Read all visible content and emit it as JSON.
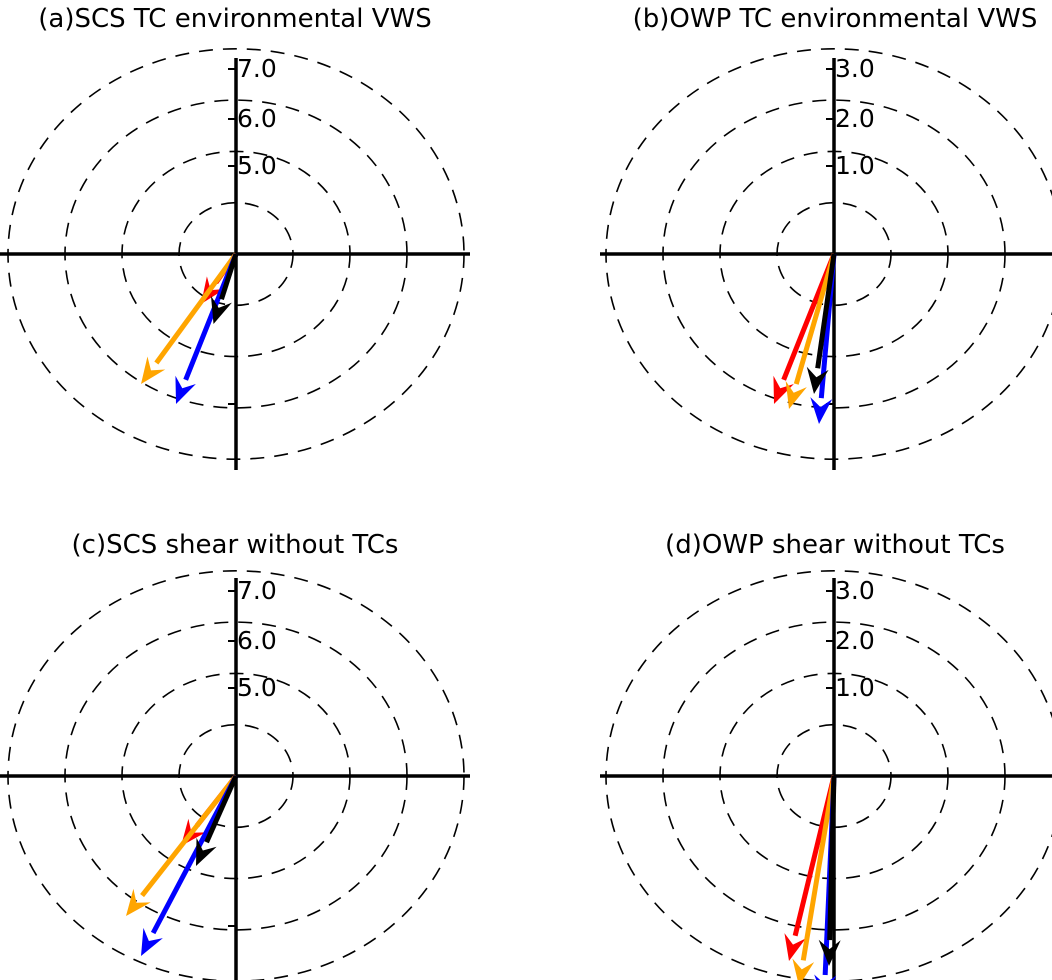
{
  "figure": {
    "vector_colors": {
      "red": "#ff0000",
      "orange": "#ffa500",
      "blue": "#0000ff",
      "black": "#000000"
    }
  },
  "chart_data": [
    {
      "type": "polar-vector",
      "title": "(a)SCS  TC environmental VWS",
      "radial_tick_labels": [
        "5.0",
        "6.0",
        "7.0"
      ],
      "vectors": [
        {
          "color": "#ff0000",
          "u": -0.7,
          "v": -1.0
        },
        {
          "color": "#ffa500",
          "u": -1.9,
          "v": -2.6
        },
        {
          "color": "#0000ff",
          "u": -1.2,
          "v": -3.0
        },
        {
          "color": "#000000",
          "u": -0.45,
          "v": -1.4
        }
      ]
    },
    {
      "type": "polar-vector",
      "title": "(b)OWP  TC environmental VWS",
      "radial_tick_labels": [
        "1.0",
        "2.0",
        "3.0"
      ],
      "vectors": [
        {
          "color": "#ff0000",
          "u": -1.2,
          "v": -3.0
        },
        {
          "color": "#ffa500",
          "u": -0.9,
          "v": -3.1
        },
        {
          "color": "#0000ff",
          "u": -0.3,
          "v": -3.4
        },
        {
          "color": "#000000",
          "u": -0.4,
          "v": -2.8
        }
      ]
    },
    {
      "type": "polar-vector",
      "title": "(c)SCS shear without TCs",
      "radial_tick_labels": [
        "5.0",
        "6.0",
        "7.0"
      ],
      "vectors": [
        {
          "color": "#ff0000",
          "u": -1.1,
          "v": -1.4
        },
        {
          "color": "#ffa500",
          "u": -2.2,
          "v": -2.8
        },
        {
          "color": "#0000ff",
          "u": -1.9,
          "v": -3.6
        },
        {
          "color": "#000000",
          "u": -0.8,
          "v": -1.8
        }
      ]
    },
    {
      "type": "polar-vector",
      "title": "(d)OWP shear without TCs",
      "radial_tick_labels": [
        "1.0",
        "2.0",
        "3.0"
      ],
      "vectors": [
        {
          "color": "#ff0000",
          "u": -0.9,
          "v": -3.7
        },
        {
          "color": "#ffa500",
          "u": -0.7,
          "v": -4.2
        },
        {
          "color": "#0000ff",
          "u": -0.2,
          "v": -4.5
        },
        {
          "color": "#000000",
          "u": -0.1,
          "v": -3.8
        }
      ]
    }
  ]
}
